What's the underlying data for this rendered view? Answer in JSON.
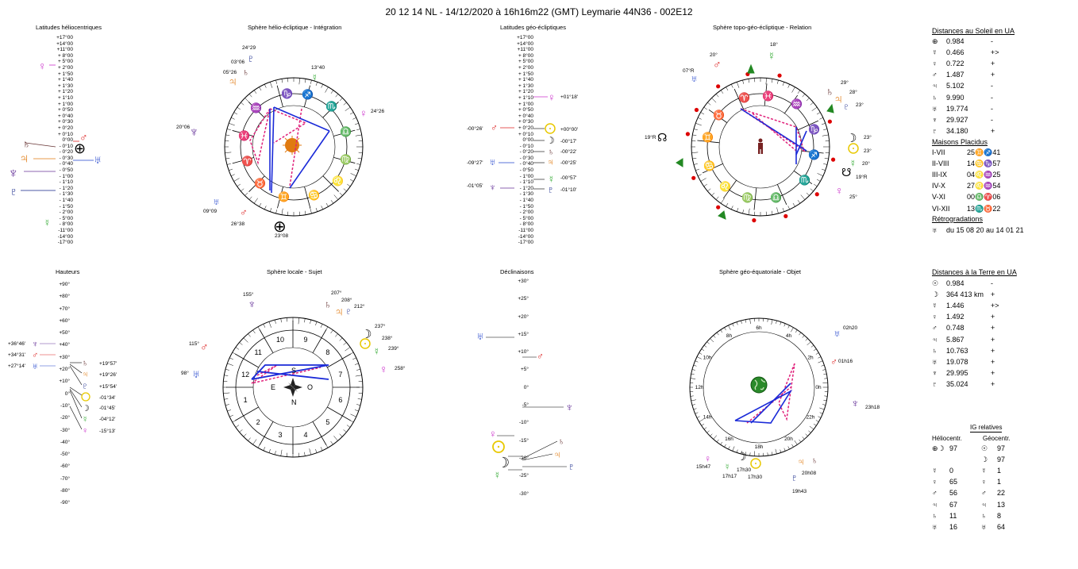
{
  "header": {
    "title": "20 12 14 NL   -  14/12/2020 à 16h16m22 (GMT)  Leymarie  44N36 - 002E12"
  },
  "panels": {
    "helio_lat_title": "Latitudes héliocentriques",
    "helio_sphere_title": "Sphère hélio-écliptique - Intégration",
    "geo_lat_title": "Latitudes géo-écliptiques",
    "topo_sphere_title": "Sphère topo-géo-écliptique - Relation",
    "hauteurs_title": "Hauteurs",
    "local_sphere_title": "Sphère locale - Sujet",
    "declinaisons_title": "Déclinaisons",
    "equatorial_title": "Sphère géo-équatoriale - Objet"
  },
  "helio_lat_scale": [
    "+17°00",
    "+14°00",
    "+11°00",
    "+ 8°00",
    "+ 5°00",
    "+ 2°00",
    "+ 1°50",
    "+ 1°40",
    "+ 1°30",
    "+ 1°20",
    "+ 1°10",
    "+ 1°00",
    "+ 0°50",
    "+ 0°40",
    "+ 0°30",
    "+ 0°20",
    "+ 0°10",
    "0°00",
    "- 0°10",
    "- 0°20",
    "- 0°30",
    "- 0°40",
    "- 0°50",
    "- 1°00",
    "- 1°10",
    "- 1°20",
    "- 1°30",
    "- 1°40",
    "- 1°50",
    "- 2°00",
    "- 5°00",
    "- 8°00",
    "-11°00",
    "-14°00",
    "-17°00"
  ],
  "geo_lat_scale": [
    "+17°00",
    "+14°00",
    "+11°00",
    "+ 8°00",
    "+ 5°00",
    "+ 2°00",
    "+ 1°50",
    "+ 1°40",
    "+ 1°30",
    "+ 1°20",
    "+ 1°10",
    "+ 1°00",
    "+ 0°50",
    "+ 0°40",
    "+ 0°30",
    "+ 0°20",
    "+ 0°10",
    "0°00",
    "- 0°10",
    "- 0°20",
    "- 0°30",
    "- 0°40",
    "- 0°50",
    "- 1°00",
    "- 1°10",
    "- 1°20",
    "- 1°30",
    "- 1°40",
    "- 1°50",
    "- 2°00",
    "- 5°00",
    "- 8°00",
    "-11°00",
    "-14°00",
    "-17°00"
  ],
  "geo_lat_left_labels": [
    "-00°26'",
    "-09°27'",
    "-01°05'"
  ],
  "geo_lat_right_labels": [
    "+01°18'",
    "+00°00'",
    "-00°17'",
    "-00°22'",
    "-00°25'",
    "-00°57'",
    "-01°10'"
  ],
  "hauteurs_scale": [
    "+90°",
    "+80°",
    "+70°",
    "+60°",
    "+50°",
    "+40°",
    "+30°",
    "+20°",
    "+10°",
    "0°",
    "-10°",
    "-20°",
    "-30°",
    "-40°",
    "-50°",
    "-60°",
    "-70°",
    "-80°",
    "-90°"
  ],
  "hauteurs_left_labels": [
    "+36°46'",
    "+34°31'",
    "+27°14'"
  ],
  "hauteurs_right_labels": [
    "+19°57'",
    "+19°26'",
    "+15°54'",
    "-01°34'",
    "-01°45'",
    "-04°12'",
    "-15°13'"
  ],
  "decl_scale": [
    "+30°",
    "+25°",
    "+20°",
    "+15°",
    "+10°",
    "+5°",
    "0°",
    "-5°",
    "-10°",
    "-15°",
    "-20°",
    "-25°",
    "-30°"
  ],
  "helio_labels": [
    "24°29",
    "03°06",
    "05°26",
    "13°40",
    "24°26",
    "20°06",
    "09°09",
    "26°38",
    "23°08"
  ],
  "topo_labels": [
    "18°",
    "20°",
    "07°R",
    "29°",
    "28°",
    "23°",
    "23°",
    "23°",
    "20°",
    "19°R",
    "19°R",
    "25°"
  ],
  "local_labels": [
    "155°",
    "207°",
    "208°",
    "212°",
    "237°",
    "238°",
    "239°",
    "258°",
    "115°",
    "98°"
  ],
  "local_houses": [
    "10",
    "9",
    "11",
    "8",
    "12",
    "7",
    "1",
    "6",
    "2",
    "5",
    "3",
    "4"
  ],
  "local_cardinals": [
    "S",
    "E",
    "O",
    "N"
  ],
  "eq_hours": [
    "6h",
    "4h",
    "8h",
    "2h",
    "10h",
    "0h",
    "12h",
    "22h",
    "14h",
    "16h",
    "18h",
    "20h"
  ],
  "eq_labels": [
    "02h20",
    "01h16",
    "23h18",
    "15h47",
    "17h17",
    "17h30",
    "17h30",
    "20h08",
    "19h43"
  ],
  "right": {
    "sun_dist_header": "Distances au Soleil en UA",
    "sun_dist": [
      {
        "sym": "⊕",
        "val": "0.984",
        "mark": "-"
      },
      {
        "sym": "☿",
        "val": "0.466",
        "mark": "+>"
      },
      {
        "sym": "♀",
        "val": "0.722",
        "mark": "+"
      },
      {
        "sym": "♂",
        "val": "1.487",
        "mark": "+"
      },
      {
        "sym": "♃",
        "val": "5.102",
        "mark": "-"
      },
      {
        "sym": "♄",
        "val": "9.990",
        "mark": "-"
      },
      {
        "sym": "♅",
        "val": "19.774",
        "mark": "-"
      },
      {
        "sym": "♆",
        "val": "29.927",
        "mark": "-"
      },
      {
        "sym": "♇",
        "val": "34.180",
        "mark": "+"
      }
    ],
    "houses_header": "Maisons Placidus",
    "houses": [
      {
        "k": "I-VII",
        "v": "25♊♐41"
      },
      {
        "k": "II-VIII",
        "v": "14♋♑57"
      },
      {
        "k": "III-IX",
        "v": "04♌♒25"
      },
      {
        "k": "IV-X",
        "v": "27♌♒54"
      },
      {
        "k": "V-XI",
        "v": "00♎♈06"
      },
      {
        "k": "VI-XII",
        "v": "13♏♉22"
      }
    ],
    "retro_header": "Rétrogradations",
    "retro": "du 15 08 20 au 14 01 21",
    "earth_dist_header": "Distances à la Terre en UA",
    "earth_dist": [
      {
        "sym": "☉",
        "val": "0.984",
        "mark": "-"
      },
      {
        "sym": "☽",
        "val": "364 413 km",
        "mark": "+"
      },
      {
        "sym": "☿",
        "val": "1.446",
        "mark": "+>"
      },
      {
        "sym": "♀",
        "val": "1.492",
        "mark": "+"
      },
      {
        "sym": "♂",
        "val": "0.748",
        "mark": "+"
      },
      {
        "sym": "♃",
        "val": "5.867",
        "mark": "+"
      },
      {
        "sym": "♄",
        "val": "10.763",
        "mark": "+"
      },
      {
        "sym": "♅",
        "val": "19.078",
        "mark": "+"
      },
      {
        "sym": "♆",
        "val": "29.995",
        "mark": "+"
      },
      {
        "sym": "♇",
        "val": "35.024",
        "mark": "+"
      }
    ],
    "ig_header": "IG relatives",
    "ig_helio": "Héliocentr.",
    "ig_geo": "Géocentr.",
    "ig_rows": [
      {
        "h_sym": "⊕☽",
        "h": "97",
        "g_sym": "☉",
        "g": "97"
      },
      {
        "h_sym": "",
        "h": "",
        "g_sym": "☽",
        "g": "97"
      },
      {
        "h_sym": "☿",
        "h": "0",
        "g_sym": "☿",
        "g": "1"
      },
      {
        "h_sym": "♀",
        "h": "65",
        "g_sym": "♀",
        "g": "1"
      },
      {
        "h_sym": "♂",
        "h": "56",
        "g_sym": "♂",
        "g": "22"
      },
      {
        "h_sym": "♃",
        "h": "67",
        "g_sym": "♃",
        "g": "13"
      },
      {
        "h_sym": "♄",
        "h": "11",
        "g_sym": "♄",
        "g": "8"
      },
      {
        "h_sym": "♅",
        "h": "16",
        "g_sym": "♅",
        "g": "64"
      }
    ]
  },
  "colors": {
    "mercury": "#33aa33",
    "venus": "#cc33cc",
    "mars": "#dd2222",
    "jupiter": "#e07a10",
    "saturn": "#663333",
    "uranus": "#2244cc",
    "neptune": "#663399",
    "pluto": "#112288",
    "sun": "#e8c800",
    "aspect_blue": "#1a2ad8",
    "aspect_pink": "#e0207a"
  }
}
